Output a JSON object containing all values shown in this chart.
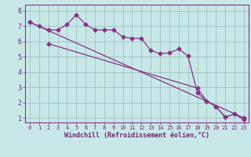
{
  "title": "",
  "xlabel": "Windchill (Refroidissement éolien,°C)",
  "ylabel": "",
  "bg_color": "#c8e8e8",
  "line_color": "#883388",
  "grid_color": "#99bbbb",
  "axis_color": "#772277",
  "spine_color": "#883388",
  "xlim": [
    -0.5,
    23.5
  ],
  "ylim": [
    0.7,
    8.4
  ],
  "yticks": [
    1,
    2,
    3,
    4,
    5,
    6,
    7,
    8
  ],
  "xticks": [
    0,
    1,
    2,
    3,
    4,
    5,
    6,
    7,
    8,
    9,
    10,
    11,
    12,
    13,
    14,
    15,
    16,
    17,
    18,
    19,
    20,
    21,
    22,
    23
  ],
  "line1_x": [
    0,
    1,
    2,
    3,
    4,
    5,
    6,
    7,
    8,
    9,
    10,
    11,
    12,
    13,
    14,
    15,
    16,
    17,
    18,
    19,
    20,
    21,
    22,
    23
  ],
  "line1_y": [
    7.25,
    7.0,
    6.75,
    6.75,
    7.1,
    7.75,
    7.1,
    6.75,
    6.75,
    6.75,
    6.3,
    6.2,
    6.2,
    5.4,
    5.2,
    5.25,
    5.5,
    5.05,
    2.65,
    2.1,
    1.75,
    1.05,
    1.25,
    0.9
  ],
  "line2_x": [
    2,
    18,
    19,
    20,
    21,
    22,
    23
  ],
  "line2_y": [
    5.85,
    2.95,
    2.1,
    1.75,
    1.05,
    1.25,
    0.9
  ],
  "line3_x": [
    0,
    23
  ],
  "line3_y": [
    7.25,
    1.0
  ],
  "marker": "D",
  "markersize": 2.5,
  "linewidth": 0.9
}
